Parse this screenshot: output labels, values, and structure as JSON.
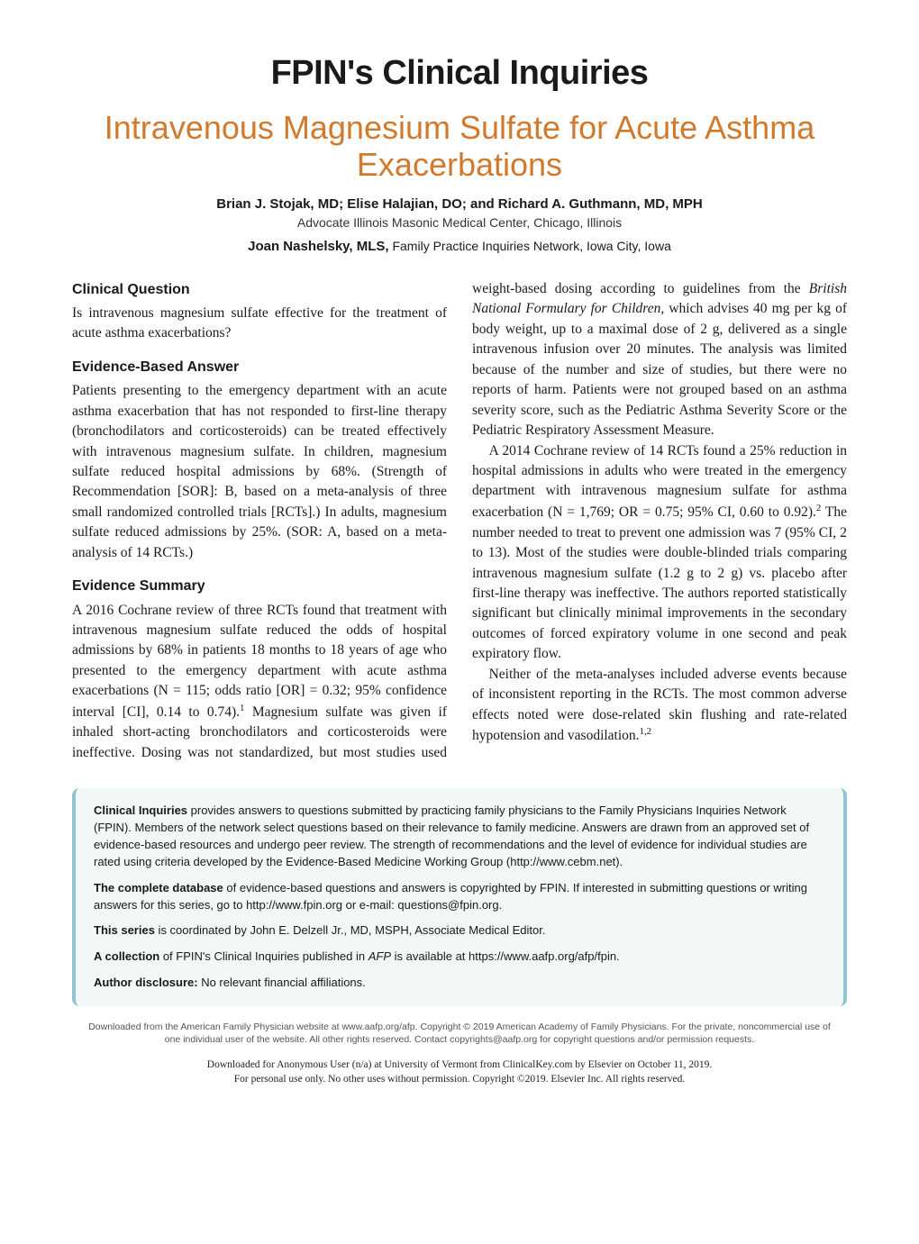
{
  "series_title": "FPIN's Clinical Inquiries",
  "article_title": "Intravenous Magnesium Sulfate for Acute Asthma Exacerbations",
  "authors_main": "Brian J. Stojak, MD; Elise Halajian, DO; and Richard A. Guthmann, MD, MPH",
  "affiliation_main": "Advocate Illinois Masonic Medical Center, Chicago, Illinois",
  "author_secondary_name": "Joan Nashelsky, MLS,",
  "author_secondary_affil": " Family Practice Inquiries Network, Iowa City, Iowa",
  "headings": {
    "clinical_question": "Clinical Question",
    "evidence_answer": "Evidence-Based Answer",
    "evidence_summary": "Evidence Summary"
  },
  "body": {
    "cq": "Is intravenous magnesium sulfate effective for the treatment of acute asthma exacerbations?",
    "eba": "Patients presenting to the emergency department with an acute asthma exacerbation that has not responded to first-line therapy (bronchodilators and corticosteroids) can be treated effectively with intravenous magnesium sulfate. In children, magnesium sulfate reduced hospital admissions by 68%. (Strength of Recommendation [SOR]: B, based on a meta-analysis of three small randomized controlled trials [RCTs].) In adults, magnesium sulfate reduced admissions by 25%. (SOR: A, based on a meta-analysis of 14 RCTs.)",
    "es_p1a": "A 2016 Cochrane review of three RCTs found that treatment with intravenous magnesium sulfate reduced the odds of hospital admissions by 68% in patients 18 months to 18 years of age who presented to the emergency department with acute asthma exacerbations (N = 115; odds ratio [OR] = 0.32; 95% confidence interval [CI], 0.14 to 0.74).",
    "es_p1b": " Magnesium sulfate was given if inhaled short-acting bronchodilators and corticosteroids were ineffective. Dosing was not standardized, but most studies used weight-based dosing according to guidelines from the ",
    "es_p1c": "British National Formulary for Children",
    "es_p1d": ", which advises 40 mg per kg of body weight, up to a maximal dose of 2 g, delivered as a single intravenous infusion over 20 minutes. The analysis was limited because of the number and size of studies, but there were no reports of harm. Patients were not grouped based on an asthma severity score, such as the Pediatric Asthma Severity Score or the Pediatric Respiratory Assessment Measure.",
    "es_p2a": "A 2014 Cochrane review of 14 RCTs found a 25% reduction in hospital admissions in adults who were treated in the emergency department with intravenous magnesium sulfate for asthma exacerbation (N = 1,769; OR = 0.75; 95% CI, 0.60 to 0.92).",
    "es_p2b": " The number needed to treat to prevent one admission was 7 (95% CI, 2 to 13). Most of the studies were double-blinded trials comparing intravenous magnesium sulfate (1.2 g to 2 g) vs. placebo after first-line therapy was ineffective. The authors reported statistically significant but clinically minimal improvements in the secondary outcomes of forced expiratory volume in one second and peak expiratory flow.",
    "es_p3a": "Neither of the meta-analyses included adverse events because of inconsistent reporting in the RCTs. The most common adverse effects noted were dose-related skin flushing and rate-related hypotension and vasodilation.",
    "ref1": "1",
    "ref2": "2",
    "ref12": "1,2"
  },
  "infobox": {
    "p1_strong": "Clinical Inquiries",
    "p1": " provides answers to questions submitted by practicing family physicians to the Family Physicians Inquiries Network (FPIN). Members of the network select questions based on their relevance to family medicine. Answers are drawn from an approved set of evidence-based resources and undergo peer review. The strength of recommendations and the level of evidence for individual studies are rated using criteria developed by the Evidence-Based Medicine Working Group (http://www.cebm.net).",
    "p2_strong": "The complete database",
    "p2": " of evidence-based questions and answers is copyrighted by FPIN. If interested in submitting questions or writing answers for this series, go to http://www.fpin.org or e-mail: questions@fpin.org.",
    "p3_strong": "This series",
    "p3": " is coordinated by John E. Delzell Jr., MD, MSPH, Associate Medical Editor.",
    "p4_strong": "A collection",
    "p4a": " of FPIN's Clinical Inquiries published in ",
    "p4_em": "AFP",
    "p4b": " is available at https://www.aafp.org/afp/fpin.",
    "p5_strong": "Author disclosure:",
    "p5": " No relevant financial affiliations."
  },
  "copyright": "Downloaded from the American Family Physician website at www.aafp.org/afp. Copyright © 2019 American Academy of Family Physicians. For the private, noncommercial use of one individual user of the website. All other rights reserved. Contact copyrights@aafp.org for copyright questions and/or permission requests.",
  "download_l1": "Downloaded for Anonymous User (n/a) at University of Vermont from ClinicalKey.com by Elsevier on October 11, 2019.",
  "download_l2": "For personal use only. No other uses without permission. Copyright ©2019. Elsevier Inc. All rights reserved.",
  "colors": {
    "accent_orange": "#d17a2e",
    "box_bg": "#f2f7f8",
    "box_border": "#8fc4d0"
  }
}
